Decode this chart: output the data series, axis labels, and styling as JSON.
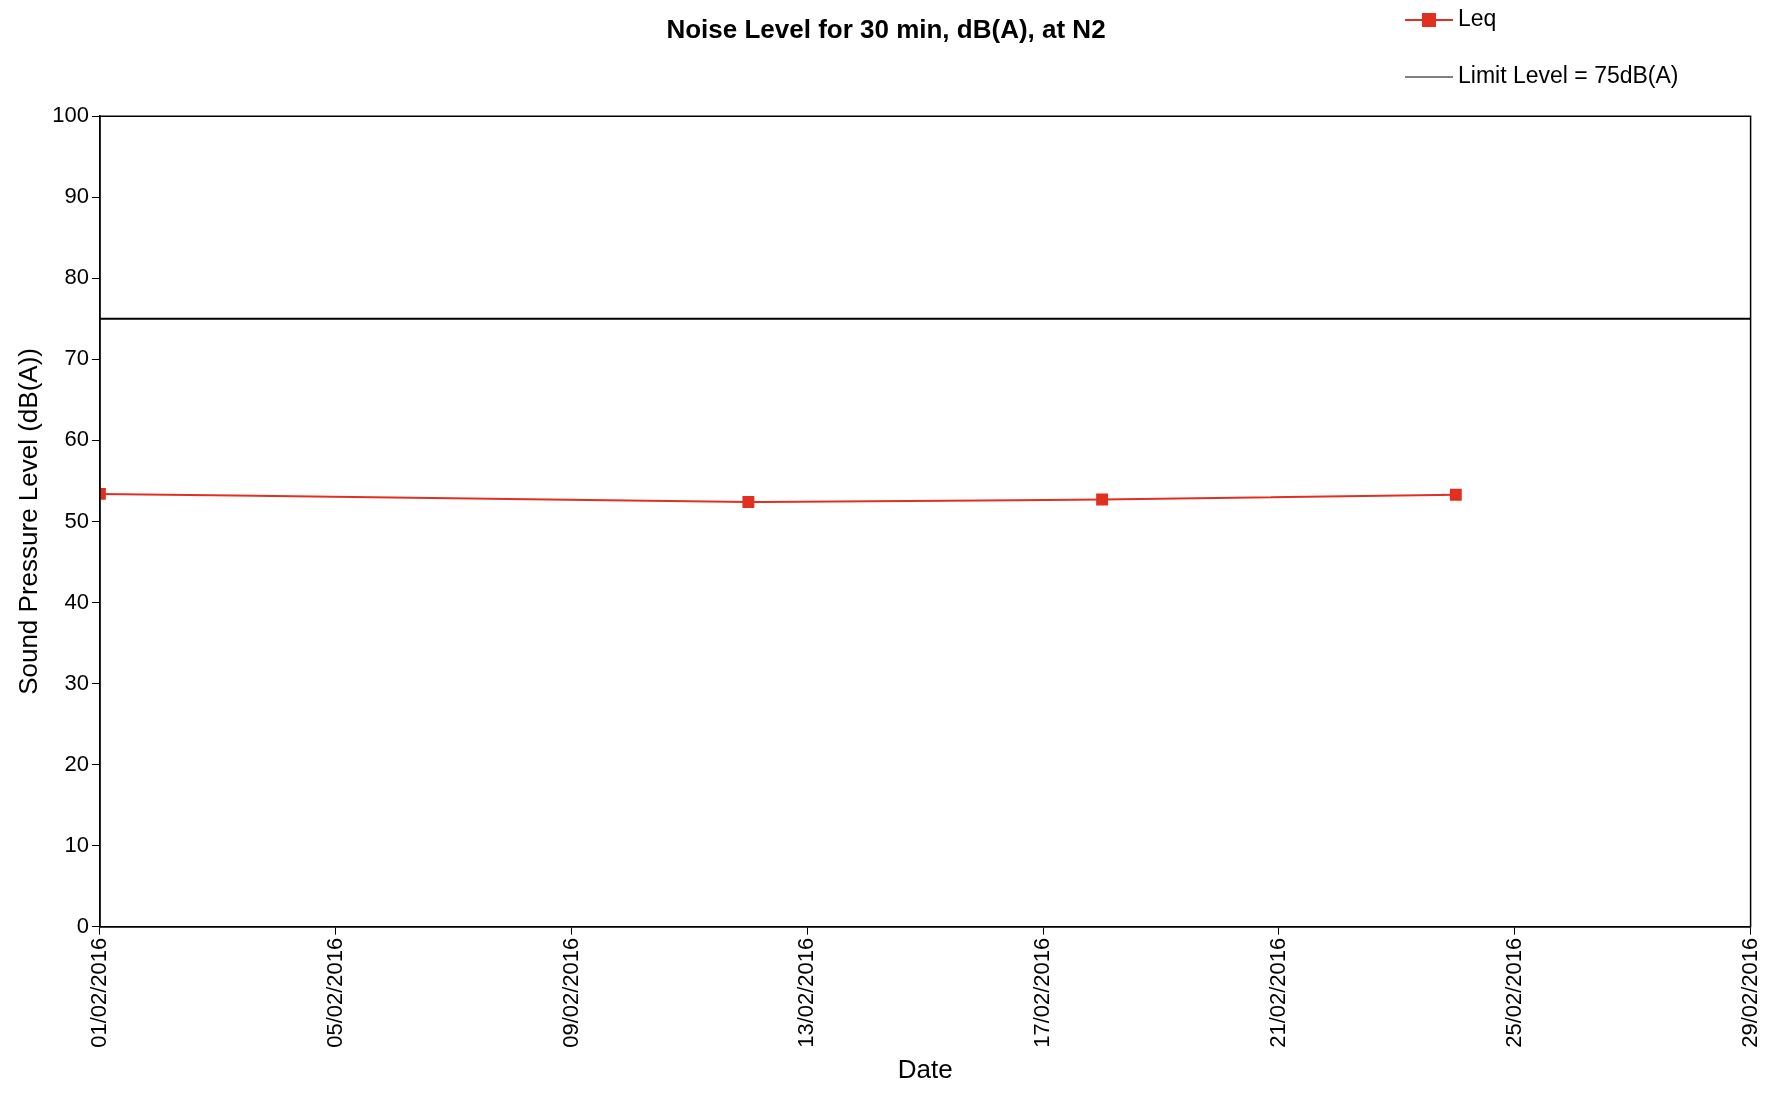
{
  "chart_data": {
    "type": "line",
    "title": "Noise Level for 30 min, dB(A), at N2",
    "xlabel": "Date",
    "ylabel": "Sound Pressure Level (dB(A))",
    "series": [
      {
        "name": "Leq",
        "color": "#e03020",
        "marker": "square",
        "x": [
          "2016-02-01",
          "2016-02-12",
          "2016-02-18",
          "2016-02-24"
        ],
        "values": [
          53.4,
          52.4,
          52.7,
          53.3
        ]
      },
      {
        "name": "Limit Level = 75dB(A)",
        "color": "#000000",
        "marker": "none",
        "x": [
          "2016-02-01",
          "2016-02-29"
        ],
        "values": [
          75,
          75
        ]
      }
    ],
    "xlim": [
      "2016-02-01",
      "2016-02-29"
    ],
    "xticks": [
      {
        "value": "2016-02-01",
        "label": "01/02/2016"
      },
      {
        "value": "2016-02-05",
        "label": "05/02/2016"
      },
      {
        "value": "2016-02-09",
        "label": "09/02/2016"
      },
      {
        "value": "2016-02-13",
        "label": "13/02/2016"
      },
      {
        "value": "2016-02-17",
        "label": "17/02/2016"
      },
      {
        "value": "2016-02-21",
        "label": "21/02/2016"
      },
      {
        "value": "2016-02-25",
        "label": "25/02/2016"
      },
      {
        "value": "2016-02-29",
        "label": "29/02/2016"
      }
    ],
    "ylim": [
      0,
      100
    ],
    "yticks": [
      0,
      10,
      20,
      30,
      40,
      50,
      60,
      70,
      80,
      90,
      100
    ],
    "grid": false,
    "legend": "top right"
  }
}
